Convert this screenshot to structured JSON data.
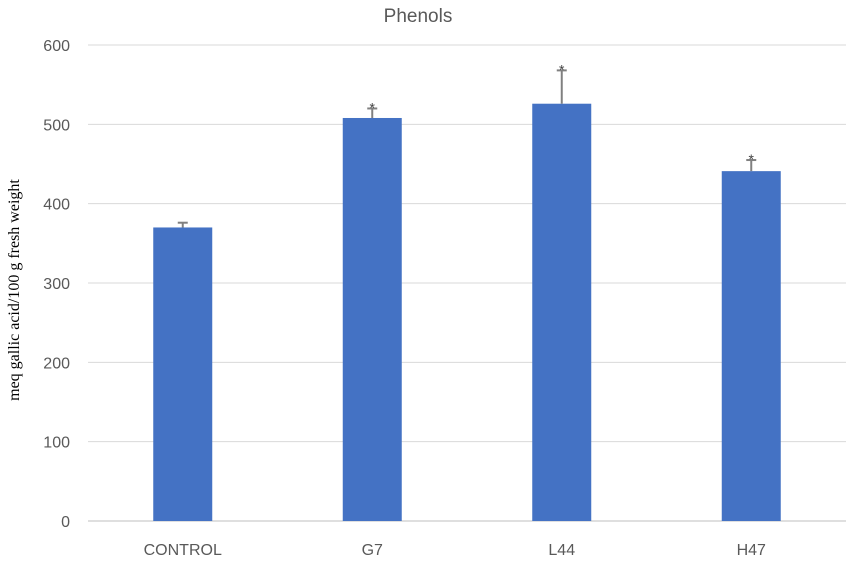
{
  "chart_data": {
    "type": "bar",
    "title": "Phenols",
    "xlabel": "",
    "ylabel": "meq gallic acid/100 g fresh weight",
    "categories": [
      "CONTROL",
      "G7",
      "L44",
      "H47"
    ],
    "values": [
      370,
      508,
      526,
      441
    ],
    "errors": [
      6,
      12,
      42,
      14
    ],
    "significance_marks": [
      "",
      "*",
      "*",
      "*"
    ],
    "ylim": [
      0,
      600
    ],
    "yticks": [
      0,
      100,
      200,
      300,
      400,
      500,
      600
    ],
    "grid": true,
    "legend": "none",
    "colors": {
      "bar": "#4472c4",
      "error_bar": "#808080",
      "grid": "#d9d9d9"
    }
  }
}
